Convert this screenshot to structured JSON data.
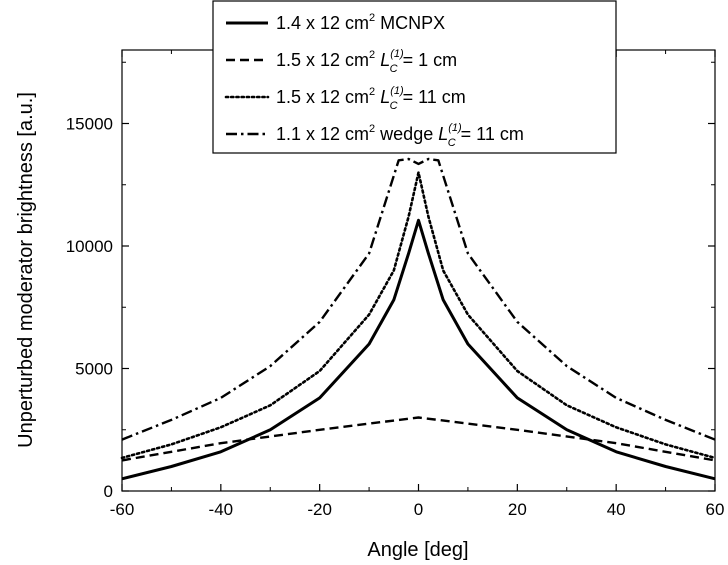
{
  "chart_data": {
    "type": "line",
    "xlabel": "Angle [deg]",
    "ylabel": "Unperturbed moderator brightness [a.u.]",
    "xlim": [
      -60,
      60
    ],
    "ylim": [
      0,
      18000
    ],
    "x_ticks": [
      "-60",
      "-40",
      "-20",
      "0",
      "20",
      "40",
      "60"
    ],
    "y_ticks": [
      "0",
      "5000",
      "10000",
      "15000"
    ],
    "grid": false,
    "legend_position": "top-center",
    "series": [
      {
        "name": "1.4 x 12 cm² MCNPX",
        "legend": {
          "base": "1.4 x 12 cm",
          "sup": "2",
          "rest": " MCNPX"
        },
        "style": "solid",
        "x": [
          -60,
          -50,
          -40,
          -30,
          -20,
          -10,
          -5,
          -2,
          0,
          2,
          5,
          10,
          20,
          30,
          40,
          50,
          60
        ],
        "y": [
          500,
          1000,
          1600,
          2500,
          3800,
          6000,
          7800,
          9700,
          11050,
          9700,
          7800,
          6000,
          3800,
          2500,
          1600,
          1000,
          500
        ]
      },
      {
        "name": "1.5 x 12 cm² L_C^(1) = 1 cm",
        "legend": {
          "base": "1.5 x 12 cm",
          "sup": "2",
          "mid": " L",
          "lsup": "(1)",
          "lsub": "C",
          "rest": " = 1 cm"
        },
        "style": "dashed",
        "x": [
          -60,
          -40,
          -20,
          -10,
          0,
          10,
          20,
          40,
          60
        ],
        "y": [
          1250,
          1950,
          2500,
          2750,
          3000,
          2750,
          2500,
          1950,
          1250
        ]
      },
      {
        "name": "1.5 x 12 cm² L_C^(1) = 11 cm",
        "legend": {
          "base": "1.5 x 12 cm",
          "sup": "2",
          "mid": " L",
          "lsup": "(1)",
          "lsub": "C",
          "rest": " = 11 cm"
        },
        "style": "dotted",
        "x": [
          -60,
          -50,
          -40,
          -30,
          -20,
          -10,
          -5,
          -2,
          0,
          2,
          5,
          10,
          20,
          30,
          40,
          50,
          60
        ],
        "y": [
          1350,
          1900,
          2600,
          3500,
          4900,
          7200,
          9000,
          11200,
          13000,
          11200,
          9000,
          7200,
          4900,
          3500,
          2600,
          1900,
          1350
        ]
      },
      {
        "name": "1.1 x 12 cm² wedge L_C^(1) = 11 cm",
        "legend": {
          "base": "1.1 x 12 cm",
          "sup": "2",
          "mid": " wedge L",
          "lsup": "(1)",
          "lsub": "C",
          "rest": " = 11 cm"
        },
        "style": "dashdot",
        "x": [
          -60,
          -50,
          -40,
          -30,
          -20,
          -10,
          -4,
          -2,
          0,
          2,
          4,
          10,
          20,
          30,
          40,
          50,
          60
        ],
        "y": [
          2100,
          2900,
          3800,
          5100,
          6900,
          9700,
          13500,
          13550,
          13350,
          13550,
          13500,
          9700,
          6900,
          5100,
          3800,
          2900,
          2100
        ]
      }
    ]
  }
}
